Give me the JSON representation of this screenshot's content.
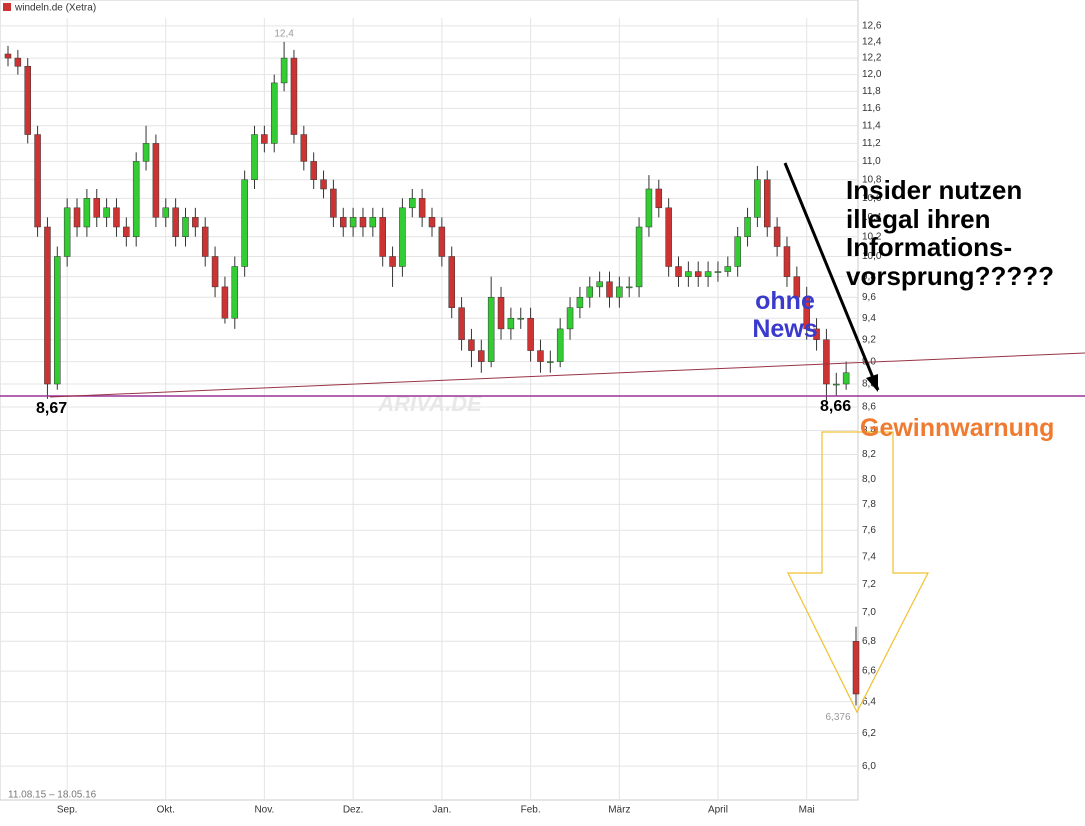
{
  "chart_data": {
    "type": "candlestick",
    "title": "windeln.de (Xetra)",
    "subtitle": "11.08.15 – 18.05.16",
    "watermark": "ARIVA.DE",
    "up_color": "#33cc33",
    "down_color": "#cc3333",
    "log_scale": true,
    "grid": true,
    "ylim": [
      5.8,
      12.7
    ],
    "yticks": [
      {
        "value": 6.0,
        "label": "6,0"
      },
      {
        "value": 6.2,
        "label": "6,2"
      },
      {
        "value": 6.4,
        "label": "6,4"
      },
      {
        "value": 6.6,
        "label": "6,6"
      },
      {
        "value": 6.8,
        "label": "6,8"
      },
      {
        "value": 7.0,
        "label": "7,0"
      },
      {
        "value": 7.2,
        "label": "7,2"
      },
      {
        "value": 7.4,
        "label": "7,4"
      },
      {
        "value": 7.6,
        "label": "7,6"
      },
      {
        "value": 7.8,
        "label": "7,8"
      },
      {
        "value": 8.0,
        "label": "8,0"
      },
      {
        "value": 8.2,
        "label": "8,2"
      },
      {
        "value": 8.4,
        "label": "8,4"
      },
      {
        "value": 8.6,
        "label": "8,6"
      },
      {
        "value": 8.8,
        "label": "8,8"
      },
      {
        "value": 9.0,
        "label": "9,0"
      },
      {
        "value": 9.2,
        "label": "9,2"
      },
      {
        "value": 9.4,
        "label": "9,4"
      },
      {
        "value": 9.6,
        "label": "9,6"
      },
      {
        "value": 9.8,
        "label": "9,8"
      },
      {
        "value": 10.0,
        "label": "10,0"
      },
      {
        "value": 10.2,
        "label": "10,2"
      },
      {
        "value": 10.4,
        "label": "10,4"
      },
      {
        "value": 10.6,
        "label": "10,6"
      },
      {
        "value": 10.8,
        "label": "10,8"
      },
      {
        "value": 11.0,
        "label": "11,0"
      },
      {
        "value": 11.2,
        "label": "11,2"
      },
      {
        "value": 11.4,
        "label": "11,4"
      },
      {
        "value": 11.6,
        "label": "11,6"
      },
      {
        "value": 11.8,
        "label": "11,8"
      },
      {
        "value": 12.0,
        "label": "12,0"
      },
      {
        "value": 12.2,
        "label": "12,2"
      },
      {
        "value": 12.4,
        "label": "12,4"
      },
      {
        "value": 12.6,
        "label": "12,6"
      }
    ],
    "categories": [
      null,
      null,
      null,
      null,
      null,
      null,
      "Sep.",
      null,
      null,
      null,
      null,
      null,
      null,
      null,
      null,
      null,
      "Okt.",
      null,
      null,
      null,
      null,
      null,
      null,
      null,
      null,
      null,
      "Nov.",
      null,
      null,
      null,
      null,
      null,
      null,
      null,
      null,
      "Dez.",
      null,
      null,
      null,
      null,
      null,
      null,
      null,
      null,
      "Jan.",
      null,
      null,
      null,
      null,
      null,
      null,
      null,
      null,
      "Feb.",
      null,
      null,
      null,
      null,
      null,
      null,
      null,
      null,
      "März",
      null,
      null,
      null,
      null,
      null,
      null,
      null,
      null,
      null,
      "April",
      null,
      null,
      null,
      null,
      null,
      null,
      null,
      null,
      "Mai",
      null,
      null,
      null,
      null,
      null
    ],
    "open": [
      12.25,
      12.2,
      12.1,
      11.3,
      10.3,
      8.8,
      10.0,
      10.5,
      10.3,
      10.6,
      10.4,
      10.5,
      10.3,
      10.2,
      11.0,
      11.2,
      10.4,
      10.5,
      10.2,
      10.4,
      10.3,
      10.0,
      9.7,
      9.4,
      9.9,
      10.8,
      11.3,
      11.2,
      11.9,
      12.2,
      11.3,
      11.0,
      10.8,
      10.7,
      10.4,
      10.3,
      10.4,
      10.3,
      10.4,
      10.0,
      9.9,
      10.5,
      10.6,
      10.4,
      10.3,
      10.0,
      9.5,
      9.2,
      9.1,
      9.0,
      9.6,
      9.3,
      9.4,
      9.4,
      9.1,
      9.0,
      9.0,
      9.3,
      9.5,
      9.6,
      9.7,
      9.75,
      9.6,
      9.7,
      9.7,
      10.3,
      10.7,
      10.5,
      9.9,
      9.8,
      9.85,
      9.8,
      9.85,
      9.85,
      9.9,
      10.2,
      10.4,
      10.8,
      10.3,
      10.1,
      9.8,
      9.6,
      9.3,
      9.2,
      8.8,
      8.8,
      6.8
    ],
    "high": [
      12.35,
      12.3,
      12.2,
      11.4,
      10.4,
      10.1,
      10.6,
      10.6,
      10.7,
      10.7,
      10.6,
      10.6,
      10.4,
      11.1,
      11.4,
      11.3,
      10.6,
      10.6,
      10.5,
      10.5,
      10.4,
      10.1,
      9.8,
      10.0,
      10.9,
      11.4,
      11.4,
      12.0,
      12.4,
      12.3,
      11.4,
      11.1,
      10.9,
      10.8,
      10.5,
      10.5,
      10.5,
      10.5,
      10.5,
      10.1,
      10.6,
      10.7,
      10.7,
      10.5,
      10.4,
      10.1,
      9.6,
      9.3,
      9.2,
      9.8,
      9.7,
      9.5,
      9.5,
      9.5,
      9.2,
      9.1,
      9.4,
      9.6,
      9.7,
      9.8,
      9.85,
      9.85,
      9.8,
      9.8,
      10.4,
      10.85,
      10.8,
      10.6,
      10.0,
      9.95,
      9.95,
      9.95,
      9.95,
      10.0,
      10.3,
      10.5,
      10.95,
      10.9,
      10.4,
      10.2,
      9.9,
      9.7,
      9.4,
      9.3,
      8.9,
      9.0,
      6.9
    ],
    "low": [
      12.1,
      12.0,
      11.2,
      10.2,
      8.67,
      8.75,
      9.9,
      10.2,
      10.2,
      10.3,
      10.3,
      10.2,
      10.1,
      10.1,
      10.9,
      10.3,
      10.3,
      10.1,
      10.1,
      10.2,
      9.9,
      9.6,
      9.35,
      9.3,
      9.8,
      10.7,
      11.1,
      11.1,
      11.8,
      11.2,
      10.9,
      10.7,
      10.6,
      10.3,
      10.2,
      10.2,
      10.2,
      10.2,
      9.9,
      9.7,
      9.8,
      10.4,
      10.3,
      10.2,
      9.9,
      9.4,
      9.1,
      8.95,
      8.9,
      8.95,
      9.2,
      9.2,
      9.3,
      9.0,
      8.9,
      8.9,
      8.95,
      9.2,
      9.4,
      9.5,
      9.6,
      9.5,
      9.5,
      9.6,
      9.6,
      10.2,
      10.4,
      9.8,
      9.7,
      9.7,
      9.7,
      9.7,
      9.75,
      9.8,
      9.8,
      10.1,
      10.3,
      10.2,
      10.0,
      9.7,
      9.5,
      9.2,
      9.1,
      8.66,
      8.7,
      8.75,
      6.376
    ],
    "close": [
      12.2,
      12.1,
      11.3,
      10.3,
      8.8,
      10.0,
      10.5,
      10.3,
      10.6,
      10.4,
      10.5,
      10.3,
      10.2,
      11.0,
      11.2,
      10.4,
      10.5,
      10.2,
      10.4,
      10.3,
      10.0,
      9.7,
      9.4,
      9.9,
      10.8,
      11.3,
      11.2,
      11.9,
      12.2,
      11.3,
      11.0,
      10.8,
      10.7,
      10.4,
      10.3,
      10.4,
      10.3,
      10.4,
      10.0,
      9.9,
      10.5,
      10.6,
      10.4,
      10.3,
      10.0,
      9.5,
      9.2,
      9.1,
      9.0,
      9.6,
      9.3,
      9.4,
      9.4,
      9.1,
      9.0,
      9.0,
      9.3,
      9.5,
      9.6,
      9.7,
      9.75,
      9.6,
      9.7,
      9.7,
      10.3,
      10.7,
      10.5,
      9.9,
      9.8,
      9.85,
      9.8,
      9.85,
      9.85,
      9.9,
      10.2,
      10.4,
      10.8,
      10.3,
      10.1,
      9.8,
      9.6,
      9.3,
      9.2,
      8.8,
      8.8,
      8.9,
      6.45
    ],
    "extremes": [
      {
        "value": 12.4,
        "label": "12,4"
      },
      {
        "value": 6.376,
        "label": "6,376"
      }
    ],
    "annotations": [
      "8,67",
      "8,66",
      "ohne News",
      "Insider nutzen illegal ihren Informations-vorsprung?????",
      "Gewinnwarnung"
    ]
  }
}
